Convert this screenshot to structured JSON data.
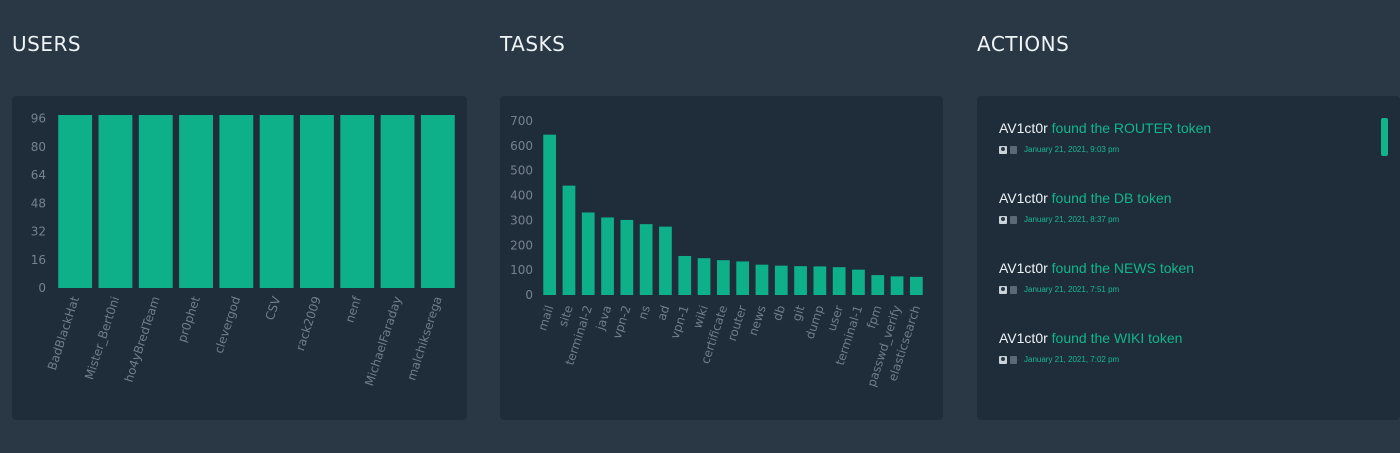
{
  "sections": {
    "users": {
      "title": "USERS"
    },
    "tasks": {
      "title": "TASKS"
    },
    "actions": {
      "title": "ACTIONS"
    }
  },
  "colors": {
    "bar": "#0eb08a",
    "background": "#2a3745",
    "panel": "#1f2d3a",
    "accent": "#12b58b"
  },
  "chart_data": [
    {
      "type": "bar",
      "categories": [
        "BadBlackHat",
        "Mister_Bert0ni",
        "ho4yBredTeam",
        "pr0phet",
        "clevergod",
        "CSV",
        "rack2009",
        "nenf",
        "MichaelFaraday",
        "malchikserega"
      ],
      "values": [
        98,
        98,
        98,
        98,
        98,
        98,
        98,
        98,
        98,
        98
      ],
      "yticks": [
        0,
        16,
        32,
        48,
        64,
        80,
        96
      ],
      "ylim": [
        0,
        98
      ],
      "grid": false,
      "legend": "none"
    },
    {
      "type": "bar",
      "categories": [
        "mail",
        "site",
        "terminal-2",
        "java",
        "vpn-2",
        "ns",
        "ad",
        "vpn-1",
        "wiki",
        "certificate",
        "router",
        "news",
        "db",
        "git",
        "dump",
        "user",
        "terminal-1",
        "fpm",
        "passwd_verify",
        "elasticsearch"
      ],
      "values": [
        645,
        440,
        332,
        312,
        302,
        285,
        275,
        157,
        148,
        140,
        135,
        122,
        118,
        116,
        115,
        112,
        102,
        80,
        75,
        73
      ],
      "yticks": [
        0,
        100,
        200,
        300,
        400,
        500,
        600,
        700
      ],
      "ylim": [
        0,
        700
      ],
      "grid": false,
      "legend": "none"
    }
  ],
  "actions": [
    {
      "actor": "AV1ct0r",
      "text": "found the ROUTER token",
      "time": "January 21, 2021, 9:03 pm"
    },
    {
      "actor": "AV1ct0r",
      "text": "found the DB token",
      "time": "January 21, 2021, 8:37 pm"
    },
    {
      "actor": "AV1ct0r",
      "text": "found the NEWS token",
      "time": "January 21, 2021, 7:51 pm"
    },
    {
      "actor": "AV1ct0r",
      "text": "found the WIKI token",
      "time": "January 21, 2021, 7:02 pm"
    }
  ],
  "icons": {
    "user": "user-icon",
    "flag": "flag-icon"
  }
}
